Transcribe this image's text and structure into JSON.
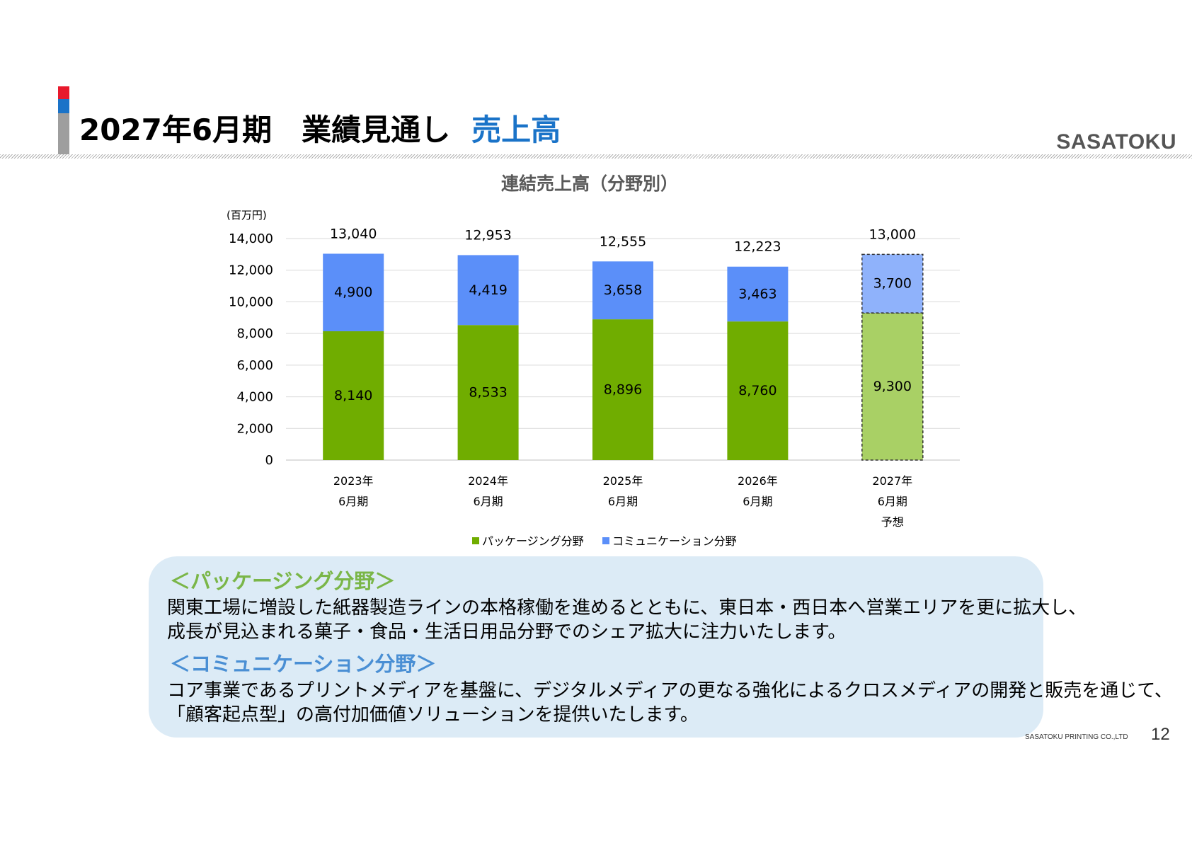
{
  "header": {
    "title": "2027年6月期　業績見通し",
    "subtitle": "売上高",
    "logo": "SASATOKU",
    "accent_colors": [
      "#e8192c",
      "#1a73c8",
      "#9e9e9e"
    ]
  },
  "chart_data": {
    "type": "bar",
    "stacked": true,
    "title": "連結売上高（分野別）",
    "unit_label": "(百万円)",
    "ylim": [
      0,
      14000
    ],
    "yticks": [
      "0",
      "2,000",
      "4,000",
      "6,000",
      "8,000",
      "10,000",
      "12,000",
      "14,000"
    ],
    "grid": true,
    "legend_position": "bottom",
    "categories": [
      [
        "2023年",
        "6月期"
      ],
      [
        "2024年",
        "6月期"
      ],
      [
        "2025年",
        "6月期"
      ],
      [
        "2026年",
        "6月期"
      ],
      [
        "2027年",
        "6月期",
        "予想"
      ]
    ],
    "series": [
      {
        "name": "パッケージング分野",
        "color": "#70ad00",
        "forecast_color": "#a9d065",
        "values": [
          8140,
          8533,
          8896,
          8760,
          9300
        ],
        "labels": [
          "8,140",
          "8,533",
          "8,896",
          "8,760",
          "9,300"
        ]
      },
      {
        "name": "コミュニケーション分野",
        "color": "#5b8ff9",
        "forecast_color": "#8fb2fb",
        "values": [
          4900,
          4419,
          3658,
          3463,
          3700
        ],
        "labels": [
          "4,900",
          "4,419",
          "3,658",
          "3,463",
          "3,700"
        ]
      }
    ],
    "totals": [
      13040,
      12953,
      12555,
      12223,
      13000
    ],
    "total_labels": [
      "13,040",
      "12,953",
      "12,555",
      "12,223",
      "13,000"
    ],
    "forecast_index": 4
  },
  "panel": {
    "packaging_title": "＜パッケージング分野＞",
    "packaging_title_color": "#7ab648",
    "packaging_line1": "関東工場に増設した紙器製造ラインの本格稼働を進めるとともに、東日本・西日本へ営業エリアを更に拡大し、",
    "packaging_line2": "成長が見込まれる菓子・食品・生活日用品分野でのシェア拡大に注力いたします。",
    "communication_title": "＜コミュニケーション分野＞",
    "communication_title_color": "#4a8fd4",
    "communication_line1": "コア事業であるプリントメディアを基盤に、デジタルメディアの更なる強化によるクロスメディアの開発と販売を通じて、",
    "communication_line2": "「顧客起点型」の高付加価値ソリューションを提供いたします。"
  },
  "footer": {
    "company": "SASATOKU PRINTING CO.,LTD",
    "page_number": "12"
  }
}
